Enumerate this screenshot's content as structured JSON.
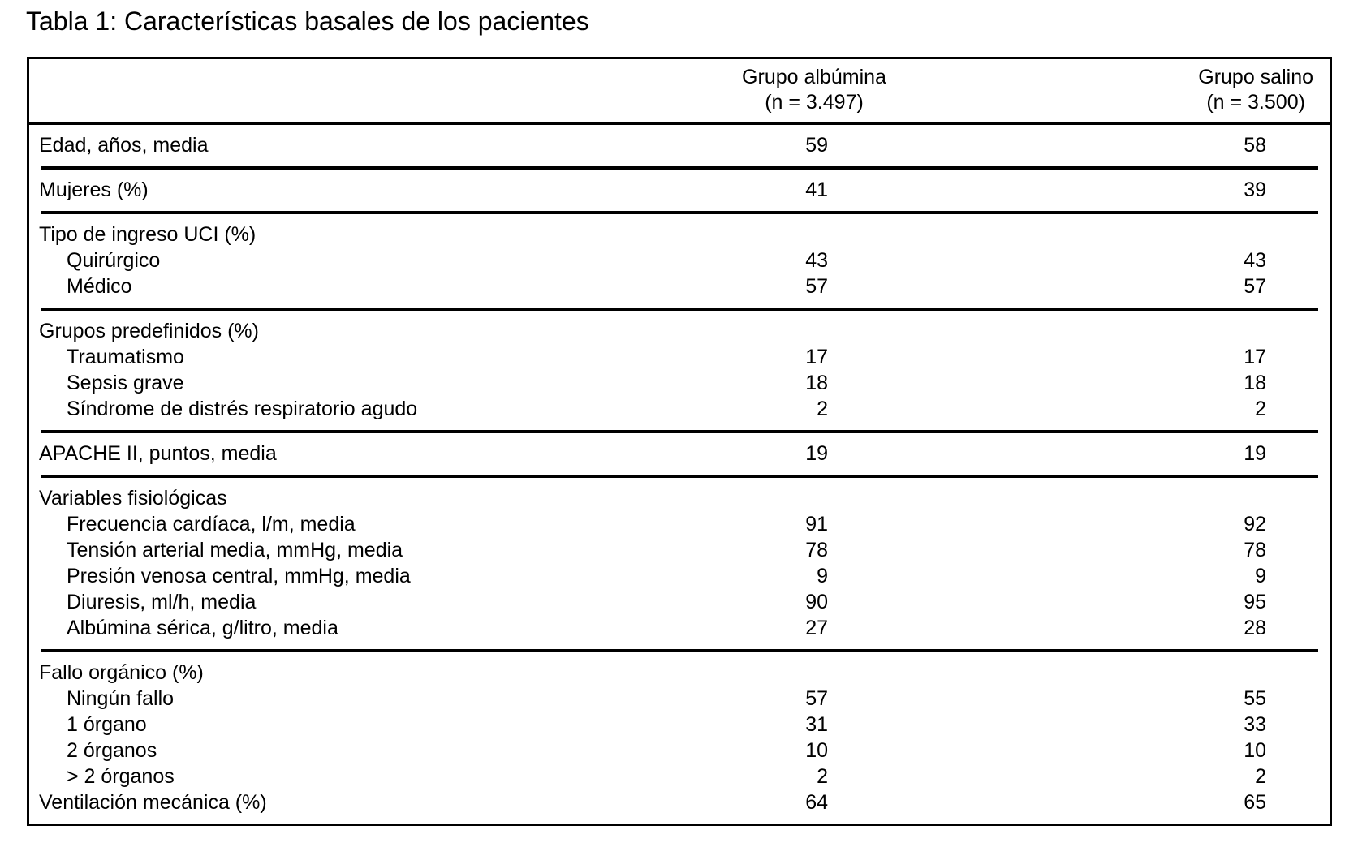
{
  "title": "Tabla 1: Características basales de los pacientes",
  "table": {
    "header": {
      "albumina": {
        "line1": "Grupo albúmina",
        "line2": "(n = 3.497)"
      },
      "salino": {
        "line1": "Grupo salino",
        "line2": "(n = 3.500)"
      }
    },
    "sections": [
      {
        "rows": [
          {
            "label": "Edad, años, media",
            "indent": false,
            "albumina": "59",
            "salino": "58"
          }
        ]
      },
      {
        "rows": [
          {
            "label": "Mujeres (%)",
            "indent": false,
            "albumina": "41",
            "salino": "39"
          }
        ]
      },
      {
        "rows": [
          {
            "label": "Tipo de ingreso UCI (%)",
            "indent": false
          },
          {
            "label": "Quirúrgico",
            "indent": true,
            "albumina": "43",
            "salino": "43"
          },
          {
            "label": "Médico",
            "indent": true,
            "albumina": "57",
            "salino": "57"
          }
        ]
      },
      {
        "rows": [
          {
            "label": "Grupos predefinidos (%)",
            "indent": false
          },
          {
            "label": "Traumatismo",
            "indent": true,
            "albumina": "17",
            "salino": "17"
          },
          {
            "label": "Sepsis grave",
            "indent": true,
            "albumina": "18",
            "salino": "18"
          },
          {
            "label": "Síndrome de distrés respiratorio agudo",
            "indent": true,
            "albumina": "2",
            "salino": "2"
          }
        ]
      },
      {
        "rows": [
          {
            "label": "APACHE II, puntos, media",
            "indent": false,
            "albumina": "19",
            "salino": "19"
          }
        ]
      },
      {
        "rows": [
          {
            "label": "Variables fisiológicas",
            "indent": false
          },
          {
            "label": "Frecuencia cardíaca, l/m, media",
            "indent": true,
            "albumina": "91",
            "salino": "92"
          },
          {
            "label": "Tensión arterial media, mmHg, media",
            "indent": true,
            "albumina": "78",
            "salino": "78"
          },
          {
            "label": "Presión venosa central, mmHg, media",
            "indent": true,
            "albumina": "9",
            "salino": "9"
          },
          {
            "label": "Diuresis, ml/h, media",
            "indent": true,
            "albumina": "90",
            "salino": "95"
          },
          {
            "label": "Albúmina sérica, g/litro, media",
            "indent": true,
            "albumina": "27",
            "salino": "28"
          }
        ]
      },
      {
        "rows": [
          {
            "label": "Fallo orgánico (%)",
            "indent": false
          },
          {
            "label": "Ningún fallo",
            "indent": true,
            "albumina": "57",
            "salino": "55"
          },
          {
            "label": "1 órgano",
            "indent": true,
            "albumina": "31",
            "salino": "33"
          },
          {
            "label": "2 órganos",
            "indent": true,
            "albumina": "10",
            "salino": "10"
          },
          {
            "label": "> 2 órganos",
            "indent": true,
            "albumina": "2",
            "salino": "2"
          },
          {
            "label": "Ventilación mecánica (%)",
            "indent": false,
            "albumina": "64",
            "salino": "65"
          }
        ]
      }
    ]
  }
}
